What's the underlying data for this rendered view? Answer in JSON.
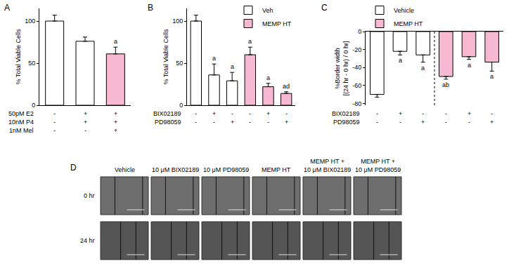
{
  "chart_data": [
    {
      "panel_label": "A",
      "type": "bar",
      "y_label": "% Total Viable Cells",
      "categories": [
        null,
        null,
        null
      ],
      "values": [
        100,
        76,
        61
      ],
      "errors": [
        7,
        5,
        8
      ],
      "colors": [
        "#ffffff",
        "#ffffff",
        "#f6b8d2"
      ],
      "bar_labels": [
        null,
        null,
        "a"
      ],
      "conditions": [
        {
          "label": "50pM E2",
          "marks": [
            "-",
            "+",
            "+"
          ]
        },
        {
          "label": "10nM P4",
          "marks": [
            "-",
            "+",
            "+"
          ]
        },
        {
          "label": "1nM Mel",
          "marks": [
            "-",
            "-",
            "+"
          ]
        }
      ],
      "ylim": [
        0,
        115
      ],
      "yticks": [
        0,
        50,
        100
      ],
      "grid": false,
      "tick_labels": "y"
    },
    {
      "panel_label": "B",
      "type": "bar",
      "y_label": "% Total Viable Cells",
      "categories": [
        null,
        null,
        null,
        null,
        null,
        null
      ],
      "series": [
        {
          "name": "Veh",
          "color": "#ffffff",
          "values": [
            100,
            36,
            29,
            null,
            null,
            null
          ],
          "errors": [
            7,
            13,
            10,
            null,
            null,
            null
          ],
          "bar_labels": [
            null,
            "a",
            "a",
            null,
            null,
            null
          ]
        },
        {
          "name": "MEMP HT",
          "color": "#f6b8d2",
          "values": [
            null,
            null,
            null,
            60,
            22,
            14
          ],
          "errors": [
            null,
            null,
            null,
            9,
            4,
            2
          ],
          "bar_labels": [
            null,
            null,
            null,
            "a",
            "a",
            "ad"
          ]
        }
      ],
      "conditions": [
        {
          "label": "BIX02189",
          "marks": [
            "-",
            "+",
            "-",
            "-",
            "+",
            "-"
          ]
        },
        {
          "label": "PD98059",
          "marks": [
            "-",
            "-",
            "+",
            "-",
            "-",
            "+"
          ]
        }
      ],
      "legend": "upper right",
      "ylim": [
        0,
        115
      ],
      "yticks": [
        0,
        50,
        100
      ],
      "grid": false,
      "tick_labels": "y"
    },
    {
      "panel_label": "C",
      "type": "bar",
      "y_label": "%Border width\n[(24 hr - 0 hr) / 0 hr]",
      "categories": [
        null,
        null,
        null,
        null,
        null,
        null
      ],
      "series": [
        {
          "name": "Vehicle",
          "color": "#ffffff",
          "values": [
            -70,
            -22,
            -26,
            null,
            null,
            null
          ],
          "errors": [
            3,
            4,
            8,
            null,
            null,
            null
          ],
          "bar_labels": [
            null,
            "a",
            "a",
            null,
            null,
            null
          ]
        },
        {
          "name": "MEMP HT",
          "color": "#f6b8d2",
          "values": [
            null,
            null,
            null,
            -50,
            -28,
            -34
          ],
          "errors": [
            null,
            null,
            null,
            3,
            3,
            10
          ],
          "bar_labels": [
            null,
            null,
            null,
            "ab",
            "a",
            "a"
          ]
        }
      ],
      "conditions": [
        {
          "label": "BIX02189",
          "marks": [
            "-",
            "+",
            "-",
            "-",
            "+",
            "-"
          ]
        },
        {
          "label": "PD98059",
          "marks": [
            "-",
            "-",
            "+",
            "-",
            "-",
            "+"
          ]
        }
      ],
      "legend": "upper left",
      "ylim": [
        -82,
        0
      ],
      "yticks": [
        -80,
        -60,
        -40,
        -20,
        0
      ],
      "grid": false,
      "tick_labels": "y"
    }
  ],
  "panel_d": {
    "panel_label": "D",
    "columns": [
      "Vehicle",
      "10 μM BIX02189",
      "10 μM PD98059",
      "MEMP HT",
      "MEMP HT +\n10 μM BIX02189",
      "MEMP HT +\n10 μM PD98059"
    ],
    "rows": [
      "0 hr",
      "24 hr"
    ]
  }
}
